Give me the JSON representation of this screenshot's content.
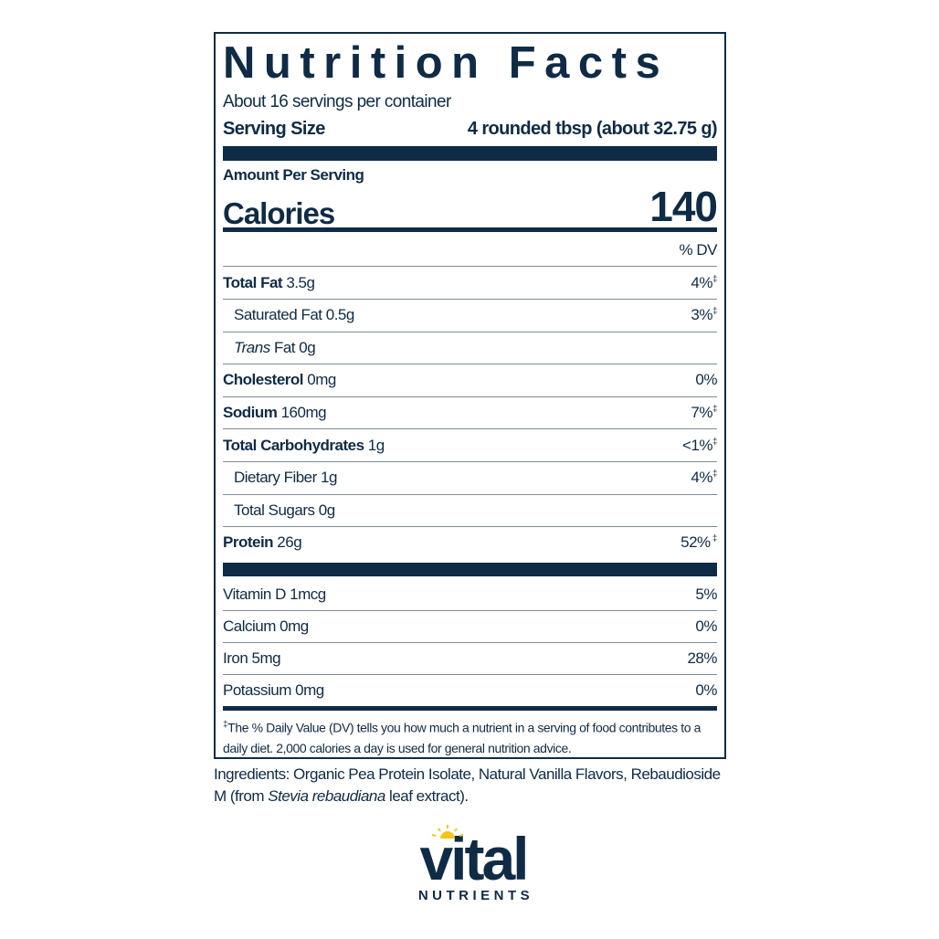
{
  "label": {
    "title": "Nutrition Facts",
    "servings_per_container": "About 16 servings per container",
    "serving_size_label": "Serving Size",
    "serving_size_value": "4 rounded tbsp (about 32.75 g)",
    "amount_per_serving": "Amount Per Serving",
    "calories_label": "Calories",
    "calories_value": "140",
    "dv_header": "% DV",
    "nutrients": [
      {
        "name": "Total Fat",
        "amount": "3.5g",
        "dv": "4%",
        "mark": "‡"
      },
      {
        "name": "Saturated Fat",
        "amount": "0.5g",
        "dv": "3%",
        "mark": "‡"
      },
      {
        "name": "Trans",
        "name_suffix": "Fat",
        "amount": "0g",
        "dv": "",
        "mark": ""
      },
      {
        "name": "Cholesterol",
        "amount": "0mg",
        "dv": "0%",
        "mark": ""
      },
      {
        "name": "Sodium",
        "amount": "160mg",
        "dv": "7%",
        "mark": "‡"
      },
      {
        "name": "Total Carbohydrates",
        "amount": "1g",
        "dv": "<1%",
        "mark": "‡"
      },
      {
        "name": "Dietary Fiber",
        "amount": "1g",
        "dv": "4%",
        "mark": "‡"
      },
      {
        "name": "Total Sugars",
        "amount": "0g",
        "dv": "",
        "mark": ""
      },
      {
        "name": "Protein",
        "amount": "26g",
        "dv": "52%",
        "mark": " ‡"
      }
    ],
    "vitamins": [
      {
        "name": "Vitamin D",
        "amount": "1mcg",
        "dv": "5%"
      },
      {
        "name": "Calcium",
        "amount": "0mg",
        "dv": "0%"
      },
      {
        "name": "Iron",
        "amount": "5mg",
        "dv": "28%"
      },
      {
        "name": "Potassium",
        "amount": "0mg",
        "dv": "0%"
      }
    ],
    "footnote_mark": "‡",
    "footnote": "The % Daily Value (DV) tells you how much a nutrient in a serving of food contributes to a daily diet. 2,000 calories a day is used for general nutrition advice."
  },
  "ingredients": {
    "text": "Ingredients: Organic Pea Protein Isolate, Natural Vanilla Flavors, Rebaudioside M (from ",
    "italic": "Stevia rebaudiana",
    "after": " leaf extract)."
  },
  "logo": {
    "word": "vital",
    "sub": "NUTRIENTS",
    "brand_color": "#0f2b45",
    "sun_color": "#f5c518"
  }
}
